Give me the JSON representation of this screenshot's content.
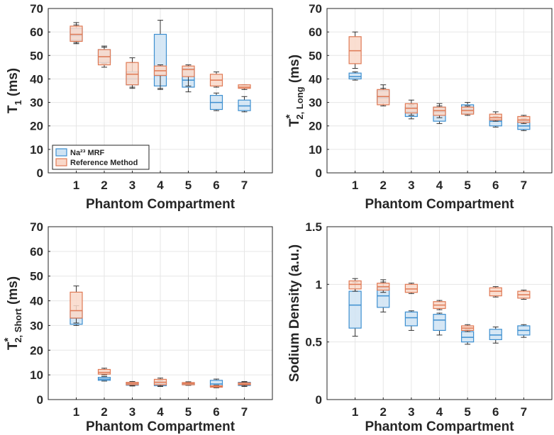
{
  "colors": {
    "mrf_fill": "#cfe3f3",
    "mrf_edge": "#3d8fd0",
    "ref_fill": "#f9d8c9",
    "ref_edge": "#e07a55",
    "axis": "#262626",
    "grid": "#e6e6e6"
  },
  "legend": {
    "mrf": "Na²³ MRF",
    "ref": "Reference Method"
  },
  "chart_data": [
    {
      "type": "box",
      "id": "t1",
      "ylabel_main": "T",
      "ylabel_sub": "1",
      "ylabel_unit": " (ms)",
      "xlabel": "Phantom Compartment",
      "categories": [
        "1",
        "2",
        "3",
        "4",
        "5",
        "6",
        "7"
      ],
      "ylim": [
        0,
        70
      ],
      "yticks": [
        0,
        10,
        20,
        30,
        40,
        50,
        60,
        70
      ],
      "ytick_labels": [
        "0",
        "10",
        "20",
        "30",
        "40",
        "50",
        "60",
        "70"
      ],
      "grid": true,
      "legend_position": "bottom-left",
      "series": [
        {
          "name": "Na²³ MRF",
          "boxes": [
            [
              55.5,
              56.5,
              58.5,
              61.5,
              63
            ],
            [
              46.5,
              47,
              49.5,
              52.5,
              53.5
            ],
            [
              36,
              37.5,
              40,
              43,
              47
            ],
            [
              35.5,
              37,
              41.5,
              59,
              65
            ],
            [
              34.5,
              36.5,
              39.5,
              44.5,
              45.5
            ],
            [
              26.5,
              27,
              30,
              33,
              34
            ],
            [
              26,
              26.5,
              28.5,
              31,
              32.5
            ]
          ]
        },
        {
          "name": "Reference Method",
          "boxes": [
            [
              55,
              56,
              59,
              62.5,
              64
            ],
            [
              45,
              46,
              49.5,
              52.5,
              54
            ],
            [
              36.5,
              37.5,
              42,
              47,
              49
            ],
            [
              36,
              41.5,
              43.5,
              45.5,
              46
            ],
            [
              37,
              41,
              44,
              45.5,
              46
            ],
            [
              36.5,
              37,
              39.5,
              42,
              43
            ],
            [
              35.5,
              36,
              36.5,
              37.5,
              37.5
            ]
          ]
        }
      ]
    },
    {
      "type": "box",
      "id": "t2long",
      "ylabel_main": "T",
      "ylabel_sup": "*",
      "ylabel_sub": "2, Long",
      "ylabel_unit": " (ms)",
      "xlabel": "Phantom Compartment",
      "categories": [
        "1",
        "2",
        "3",
        "4",
        "5",
        "6",
        "7"
      ],
      "ylim": [
        0,
        70
      ],
      "yticks": [
        0,
        10,
        20,
        30,
        40,
        50,
        60,
        70
      ],
      "ytick_labels": [
        "0",
        "10",
        "20",
        "30",
        "40",
        "50",
        "60",
        "70"
      ],
      "grid": true,
      "series": [
        {
          "name": "Na²³ MRF",
          "boxes": [
            [
              39.5,
              40,
              41,
              42.5,
              43
            ],
            [
              29,
              30,
              32,
              35,
              36
            ],
            [
              23,
              24,
              26,
              28,
              29
            ],
            [
              21,
              22,
              26,
              28,
              29.5
            ],
            [
              25,
              25.5,
              27,
              29,
              30
            ],
            [
              19.5,
              20,
              22,
              23.5,
              24
            ],
            [
              18,
              18.5,
              20,
              22,
              23
            ]
          ]
        },
        {
          "name": "Reference Method",
          "boxes": [
            [
              44.5,
              46.5,
              52,
              58,
              60
            ],
            [
              28.5,
              29,
              32.5,
              35.5,
              37.5
            ],
            [
              24.5,
              25.5,
              27.5,
              29.5,
              31
            ],
            [
              23.5,
              24.5,
              26.5,
              28,
              28.5
            ],
            [
              24.5,
              25,
              26.5,
              28,
              28.5
            ],
            [
              22,
              22.5,
              23.5,
              25,
              26
            ],
            [
              21,
              21.5,
              22.5,
              24,
              24.5
            ]
          ]
        }
      ]
    },
    {
      "type": "box",
      "id": "t2short",
      "ylabel_main": "T",
      "ylabel_sup": "*",
      "ylabel_sub": "2, Short",
      "ylabel_unit": " (ms)",
      "xlabel": "Phantom Compartment",
      "categories": [
        "1",
        "2",
        "3",
        "4",
        "5",
        "6",
        "7"
      ],
      "ylim": [
        0,
        70
      ],
      "yticks": [
        0,
        10,
        20,
        30,
        40,
        50,
        60,
        70
      ],
      "ytick_labels": [
        "0",
        "10",
        "20",
        "30",
        "40",
        "50",
        "60",
        "70"
      ],
      "grid": true,
      "series": [
        {
          "name": "Na²³ MRF",
          "boxes": [
            [
              30,
              30.5,
              33,
              36,
              38
            ],
            [
              7.5,
              7.8,
              8.3,
              9,
              9.3
            ],
            [
              5.5,
              5.8,
              6.3,
              6.8,
              7
            ],
            [
              5.3,
              5.6,
              6.3,
              7.2,
              7.8
            ],
            [
              5.8,
              6,
              6.3,
              6.8,
              7
            ],
            [
              4.8,
              5.3,
              6.3,
              7.8,
              8.3
            ],
            [
              5.3,
              5.7,
              6.3,
              7,
              7.3
            ]
          ]
        },
        {
          "name": "Reference Method",
          "boxes": [
            [
              31,
              33,
              36,
              43.5,
              46
            ],
            [
              10,
              10.3,
              11,
              12.2,
              12.7
            ],
            [
              5.7,
              6,
              6.5,
              7,
              7.3
            ],
            [
              5.5,
              6,
              7,
              8.2,
              8.7
            ],
            [
              5.8,
              6,
              6.5,
              6.9,
              7.2
            ],
            [
              4.8,
              5,
              5.3,
              5.6,
              5.8
            ],
            [
              5.7,
              6,
              6.3,
              6.8,
              7
            ]
          ]
        }
      ]
    },
    {
      "type": "box",
      "id": "density",
      "ylabel_main": "Sodium Density (a.u.)",
      "xlabel": "Phantom Compartment",
      "categories": [
        "1",
        "2",
        "3",
        "4",
        "5",
        "6",
        "7"
      ],
      "ylim": [
        0,
        1.5
      ],
      "yticks": [
        0,
        0.5,
        1,
        1.5
      ],
      "ytick_labels": [
        "0",
        "0.5",
        "1",
        "1.5"
      ],
      "grid": true,
      "series": [
        {
          "name": "Na²³ MRF",
          "boxes": [
            [
              0.55,
              0.62,
              0.82,
              0.94,
              1.02
            ],
            [
              0.76,
              0.8,
              0.9,
              0.97,
              1.02
            ],
            [
              0.6,
              0.64,
              0.71,
              0.76,
              0.77
            ],
            [
              0.56,
              0.6,
              0.69,
              0.74,
              0.75
            ],
            [
              0.48,
              0.5,
              0.54,
              0.59,
              0.61
            ],
            [
              0.49,
              0.52,
              0.56,
              0.61,
              0.63
            ],
            [
              0.54,
              0.56,
              0.6,
              0.64,
              0.65
            ]
          ]
        },
        {
          "name": "Reference Method",
          "boxes": [
            [
              0.94,
              0.96,
              1.0,
              1.03,
              1.05
            ],
            [
              0.93,
              0.95,
              0.98,
              1.01,
              1.04
            ],
            [
              0.92,
              0.93,
              0.96,
              1.0,
              1.01
            ],
            [
              0.78,
              0.79,
              0.82,
              0.85,
              0.86
            ],
            [
              0.59,
              0.6,
              0.62,
              0.64,
              0.65
            ],
            [
              0.89,
              0.9,
              0.94,
              0.97,
              0.98
            ],
            [
              0.87,
              0.88,
              0.91,
              0.94,
              0.95
            ]
          ]
        }
      ]
    }
  ]
}
